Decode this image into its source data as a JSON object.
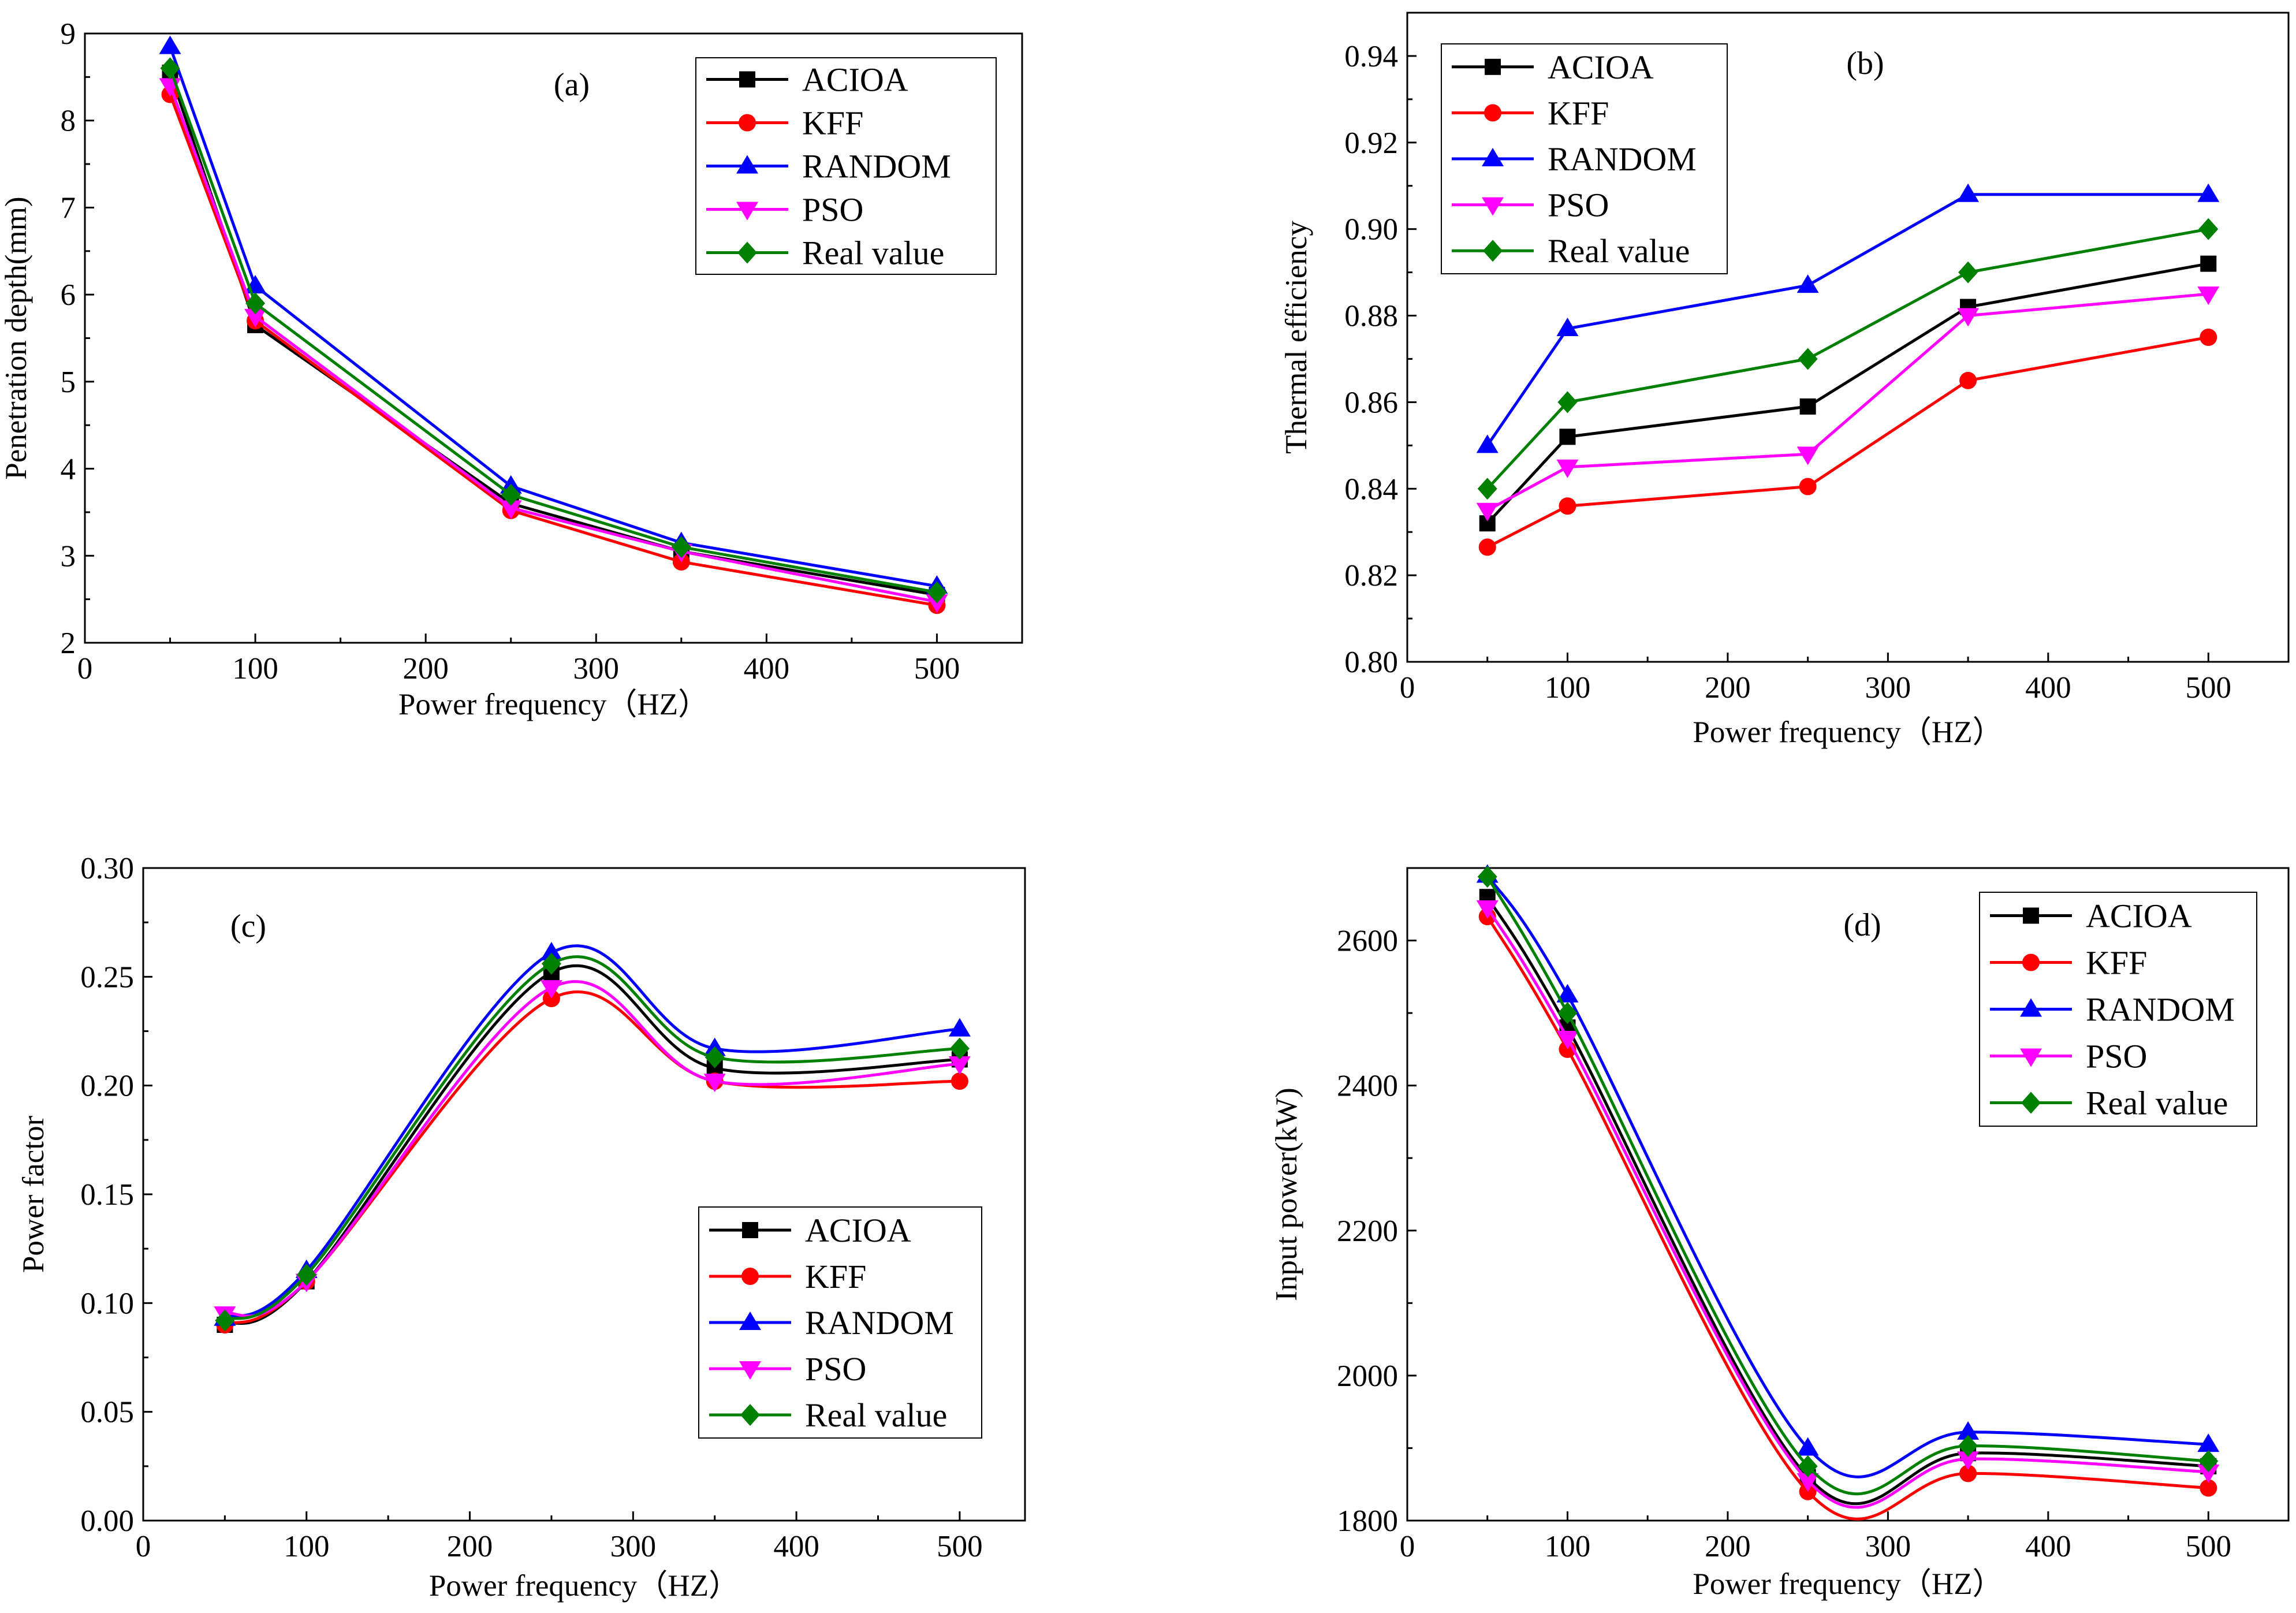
{
  "colors": {
    "ACIOA": "#000000",
    "KFF": "#ff0000",
    "RANDOM": "#0000ff",
    "PSO": "#ff00ff",
    "Real value": "#008000"
  },
  "markers": {
    "ACIOA": "square",
    "KFF": "circle",
    "RANDOM": "triangle-up",
    "PSO": "triangle-down",
    "Real value": "diamond"
  },
  "chart_data": [
    {
      "id": "a",
      "type": "line",
      "panel_label": "(a)",
      "xlabel": "Power frequency（HZ）",
      "ylabel": "Penetration depth(mm)",
      "xlim": [
        0,
        550
      ],
      "ylim": [
        2,
        9
      ],
      "xticks": [
        0,
        100,
        200,
        300,
        400,
        500
      ],
      "yticks": [
        2,
        3,
        4,
        5,
        6,
        7,
        8,
        9
      ],
      "ytick_labels": [
        "2",
        "3",
        "4",
        "5",
        "6",
        "7",
        "8",
        "9"
      ],
      "smooth": false,
      "legend_position": "top-right",
      "x": [
        50,
        100,
        250,
        350,
        500
      ],
      "series": [
        {
          "name": "ACIOA",
          "values": [
            8.55,
            5.65,
            3.6,
            3.05,
            2.55
          ]
        },
        {
          "name": "KFF",
          "values": [
            8.3,
            5.7,
            3.52,
            2.93,
            2.43
          ]
        },
        {
          "name": "RANDOM",
          "values": [
            8.85,
            6.1,
            3.8,
            3.15,
            2.65
          ]
        },
        {
          "name": "PSO",
          "values": [
            8.4,
            5.75,
            3.55,
            3.05,
            2.47
          ]
        },
        {
          "name": "Real value",
          "values": [
            8.6,
            5.9,
            3.7,
            3.1,
            2.58
          ]
        }
      ]
    },
    {
      "id": "b",
      "type": "line",
      "panel_label": "(b)",
      "xlabel": "Power frequency（HZ）",
      "ylabel": "Thermal efficiency",
      "xlim": [
        0,
        550
      ],
      "ylim": [
        0.8,
        0.95
      ],
      "xticks": [
        0,
        100,
        200,
        300,
        400,
        500
      ],
      "yticks": [
        0.8,
        0.82,
        0.84,
        0.86,
        0.88,
        0.9,
        0.92,
        0.94
      ],
      "ytick_labels": [
        "0.80",
        "0.82",
        "0.84",
        "0.86",
        "0.88",
        "0.90",
        "0.92",
        "0.94"
      ],
      "smooth": false,
      "legend_position": "top-left",
      "x": [
        50,
        100,
        250,
        350,
        500
      ],
      "series": [
        {
          "name": "ACIOA",
          "values": [
            0.832,
            0.852,
            0.859,
            0.882,
            0.892
          ]
        },
        {
          "name": "KFF",
          "values": [
            0.8265,
            0.836,
            0.8405,
            0.865,
            0.875
          ]
        },
        {
          "name": "RANDOM",
          "values": [
            0.85,
            0.877,
            0.887,
            0.908,
            0.908
          ]
        },
        {
          "name": "PSO",
          "values": [
            0.835,
            0.845,
            0.848,
            0.88,
            0.885
          ]
        },
        {
          "name": "Real value",
          "values": [
            0.84,
            0.86,
            0.87,
            0.89,
            0.9
          ]
        }
      ]
    },
    {
      "id": "c",
      "type": "line",
      "panel_label": "(c)",
      "xlabel": "Power frequency（HZ）",
      "ylabel": "Power factor",
      "xlim": [
        0,
        540
      ],
      "ylim": [
        0,
        0.3
      ],
      "xticks": [
        0,
        100,
        200,
        300,
        400,
        500
      ],
      "yticks": [
        0.0,
        0.05,
        0.1,
        0.15,
        0.2,
        0.25,
        0.3
      ],
      "ytick_labels": [
        "0.00",
        "0.05",
        "0.10",
        "0.15",
        "0.20",
        "0.25",
        "0.30"
      ],
      "smooth": true,
      "legend_position": "bottom-right",
      "x": [
        50,
        100,
        250,
        350,
        500
      ],
      "series": [
        {
          "name": "ACIOA",
          "values": [
            0.09,
            0.11,
            0.252,
            0.208,
            0.212
          ]
        },
        {
          "name": "KFF",
          "values": [
            0.09,
            0.11,
            0.24,
            0.202,
            0.202
          ]
        },
        {
          "name": "RANDOM",
          "values": [
            0.093,
            0.115,
            0.261,
            0.217,
            0.226
          ]
        },
        {
          "name": "PSO",
          "values": [
            0.095,
            0.11,
            0.245,
            0.202,
            0.21
          ]
        },
        {
          "name": "Real value",
          "values": [
            0.092,
            0.113,
            0.256,
            0.213,
            0.217
          ]
        }
      ]
    },
    {
      "id": "d",
      "type": "line",
      "panel_label": "(d)",
      "xlabel": "Power frequency（HZ）",
      "ylabel": "Input power(kW)",
      "xlim": [
        0,
        550
      ],
      "ylim": [
        1800,
        2700
      ],
      "xticks": [
        0,
        100,
        200,
        300,
        400,
        500
      ],
      "yticks": [
        1800,
        2000,
        2200,
        2400,
        2600
      ],
      "ytick_labels": [
        "1800",
        "2000",
        "2200",
        "2400",
        "2600"
      ],
      "smooth": true,
      "legend_position": "top-right",
      "x": [
        50,
        100,
        250,
        350,
        500
      ],
      "series": [
        {
          "name": "ACIOA",
          "values": [
            2660,
            2480,
            1860,
            1893,
            1875
          ]
        },
        {
          "name": "KFF",
          "values": [
            2633,
            2450,
            1840,
            1865,
            1845
          ]
        },
        {
          "name": "RANDOM",
          "values": [
            2690,
            2525,
            1900,
            1922,
            1905
          ]
        },
        {
          "name": "PSO",
          "values": [
            2645,
            2465,
            1855,
            1885,
            1867
          ]
        },
        {
          "name": "Real value",
          "values": [
            2688,
            2500,
            1875,
            1903,
            1882
          ]
        }
      ]
    }
  ]
}
